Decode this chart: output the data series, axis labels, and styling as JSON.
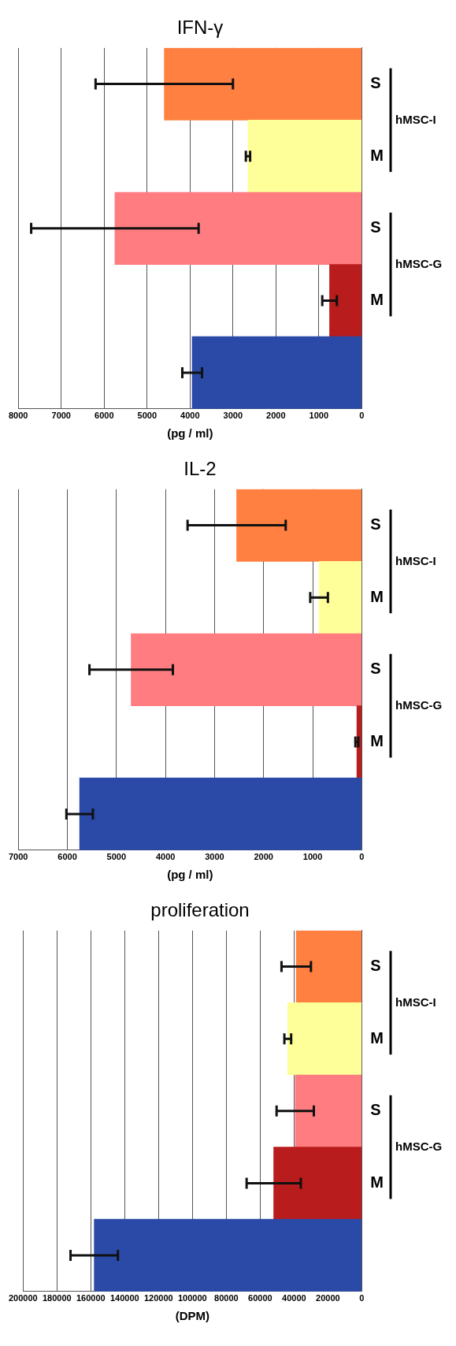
{
  "chart_data": [
    {
      "type": "bar",
      "orientation": "horizontal",
      "title": "IFN-γ",
      "xlabel": "(pg / ml)",
      "categories": [
        "S",
        "M",
        "S",
        "M",
        null
      ],
      "values": [
        4600,
        2650,
        5750,
        750,
        3950
      ],
      "errors": [
        1600,
        50,
        1950,
        170,
        230
      ],
      "colors": [
        "#ff8040",
        "#ffff99",
        "#ff7c80",
        "#b81c1c",
        "#2b4aa8"
      ],
      "xlim": [
        8000,
        0
      ],
      "xticks": [
        8000,
        7000,
        6000,
        5000,
        4000,
        3000,
        2000,
        1000,
        0
      ],
      "grid": "x",
      "annotations": [
        "hMSC-I",
        "hMSC-G"
      ]
    },
    {
      "type": "bar",
      "orientation": "horizontal",
      "title": "IL-2",
      "xlabel": "(pg / ml)",
      "categories": [
        "S",
        "M",
        "S",
        "M",
        null
      ],
      "values": [
        2550,
        870,
        4700,
        100,
        5750
      ],
      "errors": [
        1000,
        180,
        850,
        30,
        270
      ],
      "colors": [
        "#ff8040",
        "#ffff99",
        "#ff7c80",
        "#b81c1c",
        "#2b4aa8"
      ],
      "xlim": [
        7000,
        0
      ],
      "xticks": [
        7000,
        6000,
        5000,
        4000,
        3000,
        2000,
        1000,
        0
      ],
      "grid": "x",
      "annotations": [
        "hMSC-I",
        "hMSC-G"
      ]
    },
    {
      "type": "bar",
      "orientation": "horizontal",
      "title": "proliferation",
      "xlabel": "(DPM)",
      "categories": [
        "S",
        "M",
        "S",
        "M",
        null
      ],
      "values": [
        38700,
        43700,
        39300,
        52000,
        158000
      ],
      "errors": [
        8700,
        2000,
        11000,
        16000,
        14000
      ],
      "colors": [
        "#ff8040",
        "#ffff99",
        "#ff7c80",
        "#b81c1c",
        "#2b4aa8"
      ],
      "xlim": [
        200000,
        0
      ],
      "xticks": [
        200000,
        180000,
        160000,
        140000,
        120000,
        100000,
        80000,
        60000,
        40000,
        20000,
        0
      ],
      "grid": "x",
      "annotations": [
        "hMSC-I",
        "hMSC-G"
      ]
    }
  ]
}
